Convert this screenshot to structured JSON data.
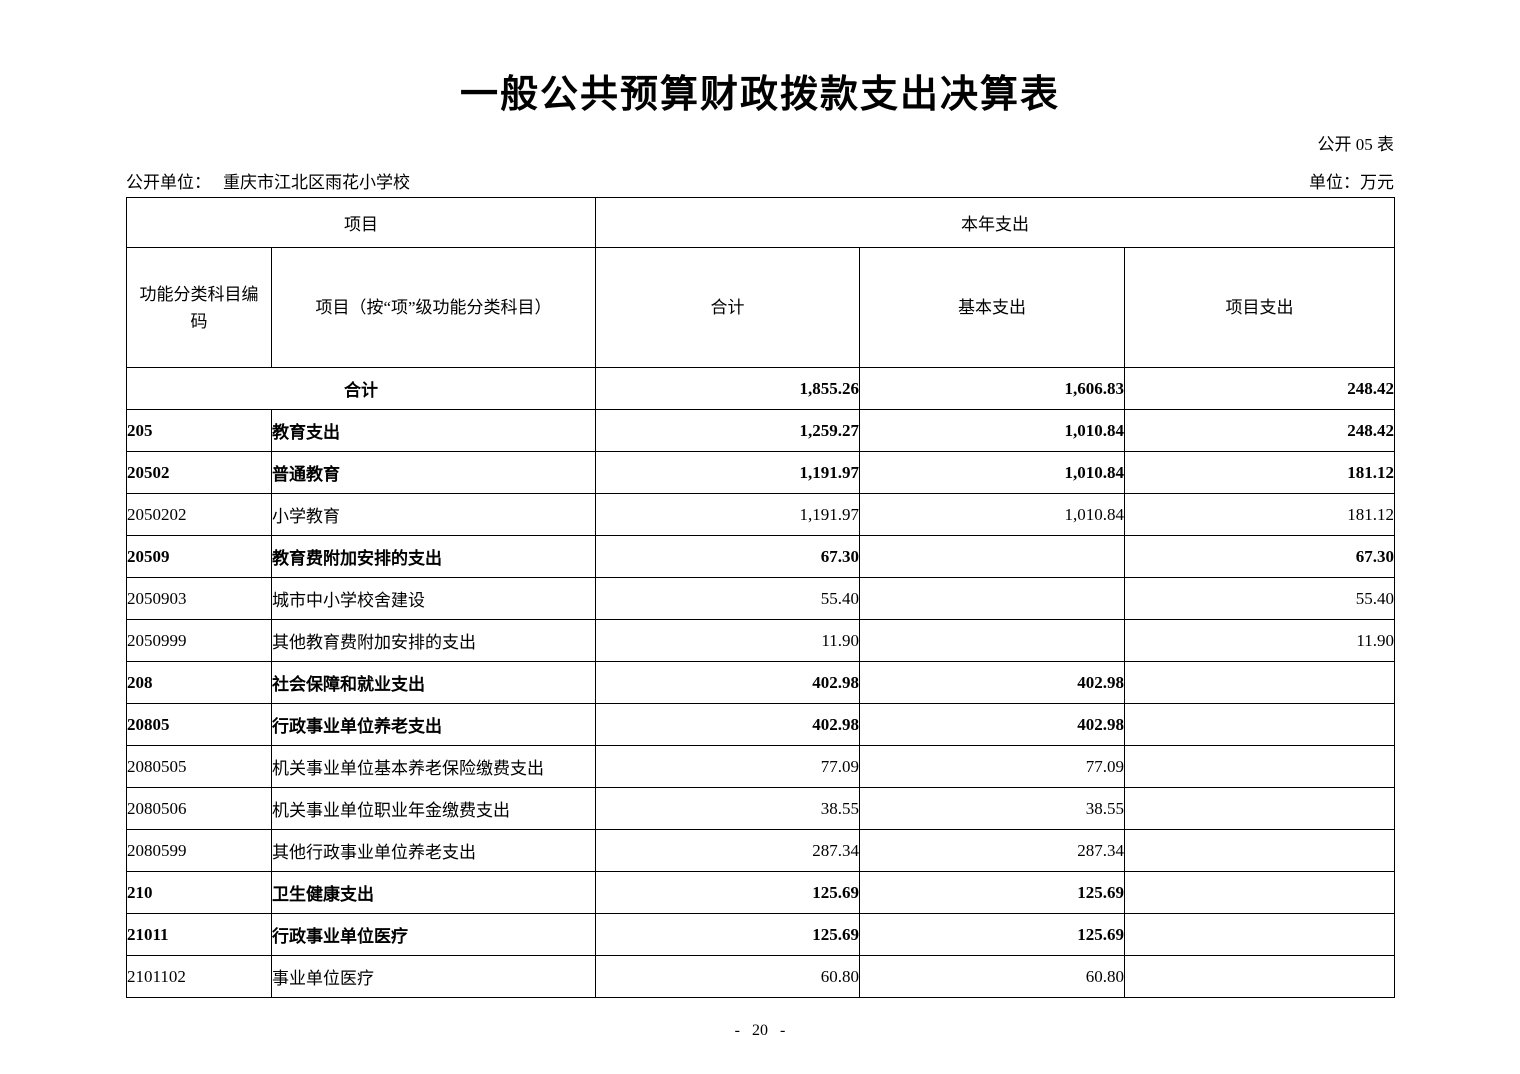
{
  "page": {
    "title": "一般公共预算财政拨款支出决算表",
    "table_no": "公开 05 表",
    "unit_label": "公开单位：",
    "unit_name": "重庆市江北区雨花小学校",
    "currency_note": "单位：万元",
    "page_number": "- 20 -"
  },
  "table": {
    "header": {
      "group_item": "项目",
      "group_current_year": "本年支出",
      "col_code": "功能分类科目编码",
      "col_item": "项目（按“项”级功能分类科目）",
      "col_total": "合计",
      "col_basic": "基本支出",
      "col_project": "项目支出"
    },
    "rows": [
      {
        "code": "",
        "item": "合计",
        "total": "1,855.26",
        "basic": "1,606.83",
        "project": "248.42",
        "bold": true,
        "merged": true
      },
      {
        "code": "205",
        "item": "教育支出",
        "total": "1,259.27",
        "basic": "1,010.84",
        "project": "248.42",
        "bold": true,
        "merged": false
      },
      {
        "code": "20502",
        "item": "普通教育",
        "total": "1,191.97",
        "basic": "1,010.84",
        "project": "181.12",
        "bold": true,
        "merged": false
      },
      {
        "code": "2050202",
        "item": "小学教育",
        "total": "1,191.97",
        "basic": "1,010.84",
        "project": "181.12",
        "bold": false,
        "merged": false
      },
      {
        "code": "20509",
        "item": "教育费附加安排的支出",
        "total": "67.30",
        "basic": "",
        "project": "67.30",
        "bold": true,
        "merged": false
      },
      {
        "code": "2050903",
        "item": "城市中小学校舍建设",
        "total": "55.40",
        "basic": "",
        "project": "55.40",
        "bold": false,
        "merged": false
      },
      {
        "code": "2050999",
        "item": "其他教育费附加安排的支出",
        "total": "11.90",
        "basic": "",
        "project": "11.90",
        "bold": false,
        "merged": false
      },
      {
        "code": "208",
        "item": "社会保障和就业支出",
        "total": "402.98",
        "basic": "402.98",
        "project": "",
        "bold": true,
        "merged": false
      },
      {
        "code": "20805",
        "item": "行政事业单位养老支出",
        "total": "402.98",
        "basic": "402.98",
        "project": "",
        "bold": true,
        "merged": false
      },
      {
        "code": "2080505",
        "item": "机关事业单位基本养老保险缴费支出",
        "total": "77.09",
        "basic": "77.09",
        "project": "",
        "bold": false,
        "merged": false
      },
      {
        "code": "2080506",
        "item": "机关事业单位职业年金缴费支出",
        "total": "38.55",
        "basic": "38.55",
        "project": "",
        "bold": false,
        "merged": false
      },
      {
        "code": "2080599",
        "item": "其他行政事业单位养老支出",
        "total": "287.34",
        "basic": "287.34",
        "project": "",
        "bold": false,
        "merged": false
      },
      {
        "code": "210",
        "item": "卫生健康支出",
        "total": "125.69",
        "basic": "125.69",
        "project": "",
        "bold": true,
        "merged": false
      },
      {
        "code": "21011",
        "item": "行政事业单位医疗",
        "total": "125.69",
        "basic": "125.69",
        "project": "",
        "bold": true,
        "merged": false
      },
      {
        "code": "2101102",
        "item": "事业单位医疗",
        "total": "60.80",
        "basic": "60.80",
        "project": "",
        "bold": false,
        "merged": false
      }
    ]
  }
}
